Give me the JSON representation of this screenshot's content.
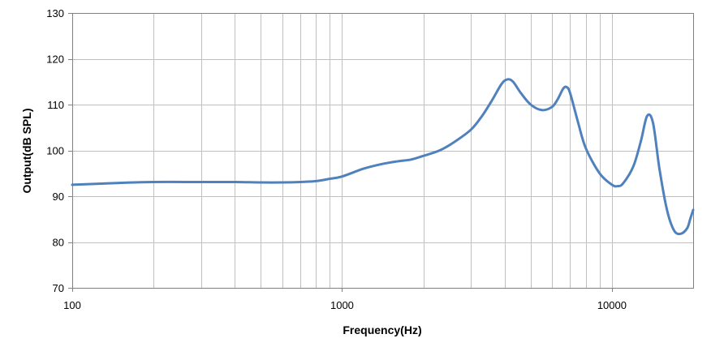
{
  "chart_data": {
    "type": "line",
    "title": "",
    "xlabel": "Frequency(Hz)",
    "ylabel": "Output(dB SPL)",
    "x_scale": "log",
    "xlim": [
      100,
      20000
    ],
    "ylim": [
      70,
      130
    ],
    "x_ticks": [
      100,
      1000,
      10000
    ],
    "x_tick_labels": [
      "100",
      "1000",
      "10000"
    ],
    "y_ticks": [
      70,
      80,
      90,
      100,
      110,
      120,
      130
    ],
    "y_tick_labels": [
      "70",
      "80",
      "90",
      "100",
      "110",
      "120",
      "130"
    ],
    "grid": true,
    "legend": "none",
    "colors": {
      "line": "#4f81bd",
      "grid": "#c0c0c0",
      "axis": "#808080"
    },
    "series": [
      {
        "x": [
          100,
          150,
          200,
          300,
          400,
          500,
          600,
          700,
          800,
          900,
          1000,
          1200,
          1400,
          1600,
          1800,
          2000,
          2300,
          2600,
          3000,
          3300,
          3600,
          3900,
          4100,
          4300,
          4600,
          5000,
          5500,
          6000,
          6300,
          6600,
          6800,
          7000,
          7500,
          8000,
          9000,
          10000,
          10500,
          11000,
          12000,
          12800,
          13500,
          14200,
          15000,
          16000,
          17000,
          18000,
          19000,
          19500,
          20000
        ],
        "y": [
          92.5,
          92.9,
          93.1,
          93.1,
          93.1,
          93.0,
          93.0,
          93.1,
          93.3,
          93.8,
          94.3,
          96.0,
          97.0,
          97.6,
          98.0,
          98.8,
          100.0,
          101.8,
          104.5,
          107.5,
          111.0,
          114.5,
          115.5,
          115.0,
          112.5,
          110.0,
          108.8,
          109.5,
          111.2,
          113.5,
          113.8,
          112.5,
          106.0,
          100.5,
          95.0,
          92.5,
          92.2,
          92.8,
          96.5,
          102.0,
          107.5,
          106.0,
          96.0,
          87.0,
          82.5,
          81.8,
          83.0,
          85.0,
          87.0
        ]
      }
    ]
  }
}
